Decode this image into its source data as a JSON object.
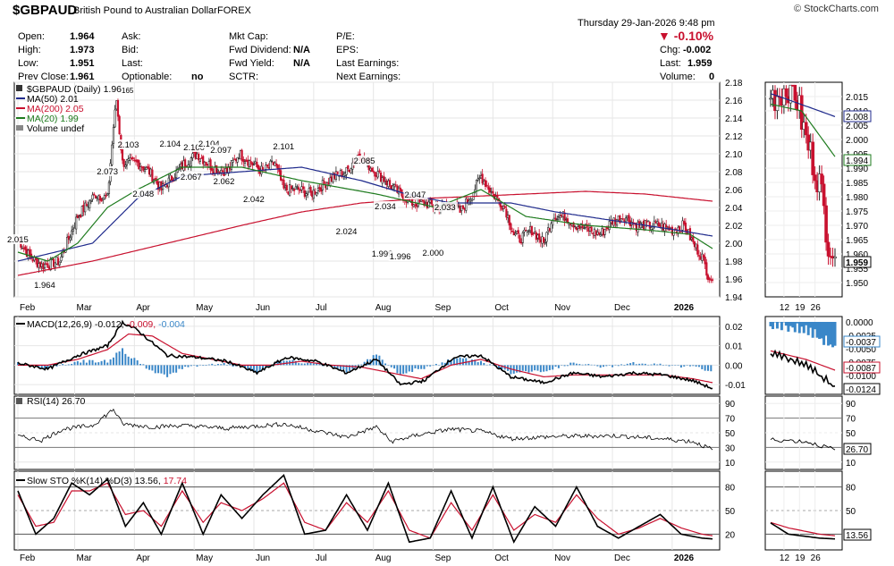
{
  "header": {
    "symbol": "$GBPAUD",
    "description": "British Pound to Australian Dollar",
    "exchange": "FOREX",
    "logo": "© StockCharts.com",
    "datetime": "Thursday  29-Jan-2026  9:48 pm",
    "change_pct": "-0.10%",
    "colors": {
      "down": "#c8102e"
    }
  },
  "quote": {
    "open_label": "Open:",
    "open": "1.964",
    "high_label": "High:",
    "high": "1.973",
    "low_label": "Low:",
    "low": "1.951",
    "prevclose_label": "Prev Close:",
    "prevclose": "1.961",
    "ask_label": "Ask:",
    "bid_label": "Bid:",
    "last_label": "Last:",
    "optionable_label": "Optionable:",
    "optionable": "no",
    "mktcap_label": "Mkt Cap:",
    "fwddiv_label": "Fwd Dividend:",
    "fwddiv": "N/A",
    "fwdyield_label": "Fwd Yield:",
    "fwdyield": "N/A",
    "sctr_label": "SCTR:",
    "pe_label": "P/E:",
    "eps_label": "EPS:",
    "lastearn_label": "Last Earnings:",
    "nextearn_label": "Next Earnings:",
    "chg_label": "Chg:",
    "chg": "-0.002",
    "last2_label": "Last:",
    "last2": "1.959",
    "volume_label": "Volume:",
    "volume": "0"
  },
  "legend": {
    "price": "$GBPAUD (Daily) 1.96",
    "price_sub": "165",
    "ma50": "MA(50) 2.01",
    "ma200": "MA(200) 2.05",
    "ma20": "MA(20) 1.99",
    "volume": "Volume undef",
    "colors": {
      "ma50": "#1f2a8c",
      "ma200": "#c8102e",
      "ma20": "#1e7b1e",
      "up": "#222222",
      "down": "#c8102e"
    }
  },
  "macd_legend": {
    "name": "MACD(12,26,9)",
    "v1": "-0.012,",
    "v2": "-0.009,",
    "v3": "-0.004",
    "colors": {
      "hist": "#3a87c8"
    }
  },
  "rsi_legend": {
    "name": "RSI(14) 26.70"
  },
  "sto_legend": {
    "name": "Slow STO %K(14) %D(3) 13.56,",
    "v2": "17.74"
  },
  "side": {
    "last_box": "1.959",
    "ma20_box": "1.994",
    "ma50_box": "2.008",
    "macd_box1": "-0.0037",
    "macd_box2": "-0.0087",
    "macd_box3": "-0.0124",
    "macd_ticks": [
      "0.0000",
      "-0.0025",
      "-0.0050",
      "-0.0075",
      "-0.0100"
    ],
    "rsi_box": "26.70",
    "sto_box": "13.56",
    "xlabels": [
      "12",
      "19",
      "26"
    ]
  },
  "main_x_labels": [
    "Feb",
    "Mar",
    "Apr",
    "May",
    "Jun",
    "Jul",
    "Aug",
    "Sep",
    "Oct",
    "Nov",
    "Dec",
    "2026"
  ],
  "chart_data": [
    {
      "type": "candlestick",
      "title": "$GBPAUD (Daily)",
      "x_labels": [
        "Feb",
        "Mar",
        "Apr",
        "May",
        "Jun",
        "Jul",
        "Aug",
        "Sep",
        "Oct",
        "Nov",
        "Dec",
        "2026"
      ],
      "ylim": [
        1.94,
        2.18
      ],
      "yticks": [
        1.94,
        1.96,
        1.98,
        2.0,
        2.02,
        2.04,
        2.06,
        2.08,
        2.1,
        2.12,
        2.14,
        2.16,
        2.18
      ],
      "close_keypoints": [
        [
          0,
          2.005
        ],
        [
          8,
          1.985
        ],
        [
          16,
          1.975
        ],
        [
          28,
          1.98
        ],
        [
          40,
          2.03
        ],
        [
          52,
          2.055
        ],
        [
          60,
          2.05
        ],
        [
          64,
          2.13
        ],
        [
          66,
          2.16
        ],
        [
          70,
          2.09
        ],
        [
          80,
          2.09
        ],
        [
          88,
          2.08
        ],
        [
          96,
          2.06
        ],
        [
          104,
          2.075
        ],
        [
          112,
          2.09
        ],
        [
          120,
          2.1
        ],
        [
          130,
          2.085
        ],
        [
          140,
          2.08
        ],
        [
          148,
          2.1
        ],
        [
          156,
          2.09
        ],
        [
          164,
          2.08
        ],
        [
          172,
          2.09
        ],
        [
          178,
          2.06
        ],
        [
          188,
          2.06
        ],
        [
          196,
          2.055
        ],
        [
          204,
          2.065
        ],
        [
          212,
          2.075
        ],
        [
          220,
          2.08
        ],
        [
          228,
          2.1
        ],
        [
          236,
          2.085
        ],
        [
          246,
          2.07
        ],
        [
          256,
          2.055
        ],
        [
          264,
          2.045
        ],
        [
          272,
          2.045
        ],
        [
          282,
          2.04
        ],
        [
          290,
          2.045
        ],
        [
          296,
          2.035
        ],
        [
          304,
          2.055
        ],
        [
          310,
          2.075
        ],
        [
          318,
          2.055
        ],
        [
          326,
          2.04
        ],
        [
          332,
          2.01
        ],
        [
          336,
          2.005
        ],
        [
          344,
          2.015
        ],
        [
          352,
          2.0
        ],
        [
          358,
          2.03
        ],
        [
          366,
          2.03
        ],
        [
          374,
          2.02
        ],
        [
          382,
          2.015
        ],
        [
          390,
          2.01
        ],
        [
          398,
          2.025
        ],
        [
          406,
          2.03
        ],
        [
          414,
          2.02
        ],
        [
          422,
          2.02
        ],
        [
          430,
          2.02
        ],
        [
          438,
          2.015
        ],
        [
          446,
          2.02
        ],
        [
          452,
          2.0
        ],
        [
          458,
          1.985
        ],
        [
          462,
          1.965
        ],
        [
          465,
          1.959
        ]
      ],
      "annotations": [
        {
          "x": 0,
          "v": "2.015"
        },
        {
          "x": 18,
          "v": "1.964"
        },
        {
          "x": 60,
          "v": "2.073"
        },
        {
          "x": 74,
          "v": "2.103"
        },
        {
          "x": 84,
          "v": "2.048"
        },
        {
          "x": 102,
          "v": "2.104"
        },
        {
          "x": 116,
          "v": "2.067"
        },
        {
          "x": 118,
          "v": "2.100"
        },
        {
          "x": 128,
          "v": "2.104"
        },
        {
          "x": 136,
          "v": "2.097"
        },
        {
          "x": 138,
          "v": "2.062"
        },
        {
          "x": 158,
          "v": "2.042"
        },
        {
          "x": 178,
          "v": "2.101"
        },
        {
          "x": 220,
          "v": "2.024"
        },
        {
          "x": 232,
          "v": "2.085"
        },
        {
          "x": 246,
          "v": "2.034"
        },
        {
          "x": 244,
          "v": "1.999"
        },
        {
          "x": 256,
          "v": "1.996"
        },
        {
          "x": 266,
          "v": "2.047"
        },
        {
          "x": 278,
          "v": "2.000"
        },
        {
          "x": 286,
          "v": "2.033"
        }
      ],
      "ma50_keypoints": [
        [
          0,
          1.98
        ],
        [
          50,
          2.0
        ],
        [
          80,
          2.05
        ],
        [
          110,
          2.075
        ],
        [
          150,
          2.08
        ],
        [
          190,
          2.085
        ],
        [
          230,
          2.07
        ],
        [
          260,
          2.055
        ],
        [
          290,
          2.045
        ],
        [
          330,
          2.045
        ],
        [
          360,
          2.035
        ],
        [
          400,
          2.025
        ],
        [
          440,
          2.015
        ],
        [
          465,
          2.008
        ]
      ],
      "ma200_keypoints": [
        [
          0,
          1.964
        ],
        [
          50,
          1.98
        ],
        [
          100,
          2.0
        ],
        [
          150,
          2.02
        ],
        [
          190,
          2.035
        ],
        [
          230,
          2.045
        ],
        [
          270,
          2.05
        ],
        [
          300,
          2.052
        ],
        [
          340,
          2.055
        ],
        [
          380,
          2.058
        ],
        [
          420,
          2.055
        ],
        [
          465,
          2.047
        ]
      ],
      "ma20_keypoints": [
        [
          0,
          1.99
        ],
        [
          20,
          1.98
        ],
        [
          40,
          2.0
        ],
        [
          60,
          2.04
        ],
        [
          80,
          2.06
        ],
        [
          110,
          2.085
        ],
        [
          150,
          2.085
        ],
        [
          190,
          2.07
        ],
        [
          240,
          2.055
        ],
        [
          280,
          2.04
        ],
        [
          310,
          2.06
        ],
        [
          340,
          2.03
        ],
        [
          380,
          2.02
        ],
        [
          420,
          2.015
        ],
        [
          450,
          2.01
        ],
        [
          465,
          1.994
        ]
      ]
    },
    {
      "type": "line",
      "title": "MACD(12,26,9)",
      "ylim": [
        -0.015,
        0.025
      ],
      "yticks": [
        -0.01,
        0.0,
        0.01,
        0.02
      ],
      "macd_keypoints": [
        [
          0,
          0.001
        ],
        [
          20,
          -0.002
        ],
        [
          40,
          0.005
        ],
        [
          60,
          0.01
        ],
        [
          70,
          0.022
        ],
        [
          80,
          0.018
        ],
        [
          100,
          0.005
        ],
        [
          120,
          0.004
        ],
        [
          140,
          0.002
        ],
        [
          160,
          -0.004
        ],
        [
          180,
          0.004
        ],
        [
          200,
          0.002
        ],
        [
          220,
          -0.004
        ],
        [
          240,
          0.003
        ],
        [
          256,
          -0.01
        ],
        [
          272,
          -0.008
        ],
        [
          292,
          0.004
        ],
        [
          310,
          0.005
        ],
        [
          330,
          -0.006
        ],
        [
          352,
          -0.009
        ],
        [
          372,
          -0.004
        ],
        [
          392,
          -0.006
        ],
        [
          412,
          -0.004
        ],
        [
          432,
          -0.005
        ],
        [
          452,
          -0.008
        ],
        [
          465,
          -0.012
        ]
      ],
      "signal_keypoints": [
        [
          0,
          0.0
        ],
        [
          20,
          0.0
        ],
        [
          40,
          0.003
        ],
        [
          60,
          0.008
        ],
        [
          74,
          0.016
        ],
        [
          90,
          0.015
        ],
        [
          110,
          0.006
        ],
        [
          130,
          0.003
        ],
        [
          150,
          0.0
        ],
        [
          170,
          0.0
        ],
        [
          190,
          0.002
        ],
        [
          210,
          0.0
        ],
        [
          230,
          -0.001
        ],
        [
          250,
          -0.004
        ],
        [
          270,
          -0.007
        ],
        [
          290,
          0.0
        ],
        [
          310,
          0.003
        ],
        [
          330,
          -0.002
        ],
        [
          352,
          -0.006
        ],
        [
          372,
          -0.005
        ],
        [
          392,
          -0.005
        ],
        [
          412,
          -0.005
        ],
        [
          432,
          -0.005
        ],
        [
          452,
          -0.007
        ],
        [
          465,
          -0.009
        ]
      ]
    },
    {
      "type": "line",
      "title": "RSI(14)",
      "ylim": [
        0,
        100
      ],
      "yticks": [
        10,
        30,
        50,
        70,
        90
      ],
      "rsi_keypoints": [
        [
          0,
          45
        ],
        [
          16,
          40
        ],
        [
          30,
          55
        ],
        [
          50,
          60
        ],
        [
          64,
          82
        ],
        [
          70,
          62
        ],
        [
          90,
          58
        ],
        [
          110,
          60
        ],
        [
          140,
          56
        ],
        [
          178,
          62
        ],
        [
          220,
          44
        ],
        [
          240,
          58
        ],
        [
          250,
          38
        ],
        [
          270,
          48
        ],
        [
          290,
          55
        ],
        [
          310,
          52
        ],
        [
          330,
          42
        ],
        [
          360,
          45
        ],
        [
          400,
          46
        ],
        [
          430,
          42
        ],
        [
          452,
          38
        ],
        [
          465,
          27
        ]
      ]
    },
    {
      "type": "line",
      "title": "Slow STO %K(14) %D(3)",
      "ylim": [
        0,
        100
      ],
      "yticks": [
        20,
        50,
        80
      ],
      "k_keypoints": [
        [
          0,
          75
        ],
        [
          12,
          20
        ],
        [
          24,
          40
        ],
        [
          36,
          85
        ],
        [
          48,
          70
        ],
        [
          60,
          90
        ],
        [
          72,
          30
        ],
        [
          84,
          60
        ],
        [
          96,
          20
        ],
        [
          110,
          85
        ],
        [
          124,
          20
        ],
        [
          136,
          70
        ],
        [
          150,
          40
        ],
        [
          164,
          70
        ],
        [
          178,
          95
        ],
        [
          192,
          20
        ],
        [
          206,
          25
        ],
        [
          220,
          70
        ],
        [
          234,
          25
        ],
        [
          248,
          85
        ],
        [
          262,
          10
        ],
        [
          276,
          15
        ],
        [
          290,
          75
        ],
        [
          304,
          15
        ],
        [
          318,
          80
        ],
        [
          332,
          10
        ],
        [
          346,
          55
        ],
        [
          360,
          30
        ],
        [
          374,
          80
        ],
        [
          388,
          30
        ],
        [
          402,
          15
        ],
        [
          416,
          30
        ],
        [
          430,
          45
        ],
        [
          444,
          20
        ],
        [
          458,
          15
        ],
        [
          465,
          14
        ]
      ],
      "d_keypoints": [
        [
          0,
          70
        ],
        [
          12,
          30
        ],
        [
          24,
          35
        ],
        [
          36,
          75
        ],
        [
          48,
          75
        ],
        [
          60,
          85
        ],
        [
          72,
          45
        ],
        [
          84,
          50
        ],
        [
          96,
          30
        ],
        [
          110,
          75
        ],
        [
          124,
          35
        ],
        [
          136,
          60
        ],
        [
          150,
          50
        ],
        [
          164,
          65
        ],
        [
          178,
          85
        ],
        [
          192,
          35
        ],
        [
          206,
          25
        ],
        [
          220,
          60
        ],
        [
          234,
          35
        ],
        [
          248,
          75
        ],
        [
          262,
          25
        ],
        [
          276,
          15
        ],
        [
          290,
          60
        ],
        [
          304,
          25
        ],
        [
          318,
          70
        ],
        [
          332,
          25
        ],
        [
          346,
          45
        ],
        [
          360,
          35
        ],
        [
          374,
          70
        ],
        [
          388,
          40
        ],
        [
          402,
          20
        ],
        [
          416,
          28
        ],
        [
          430,
          40
        ],
        [
          444,
          28
        ],
        [
          458,
          20
        ],
        [
          465,
          18
        ]
      ]
    }
  ]
}
